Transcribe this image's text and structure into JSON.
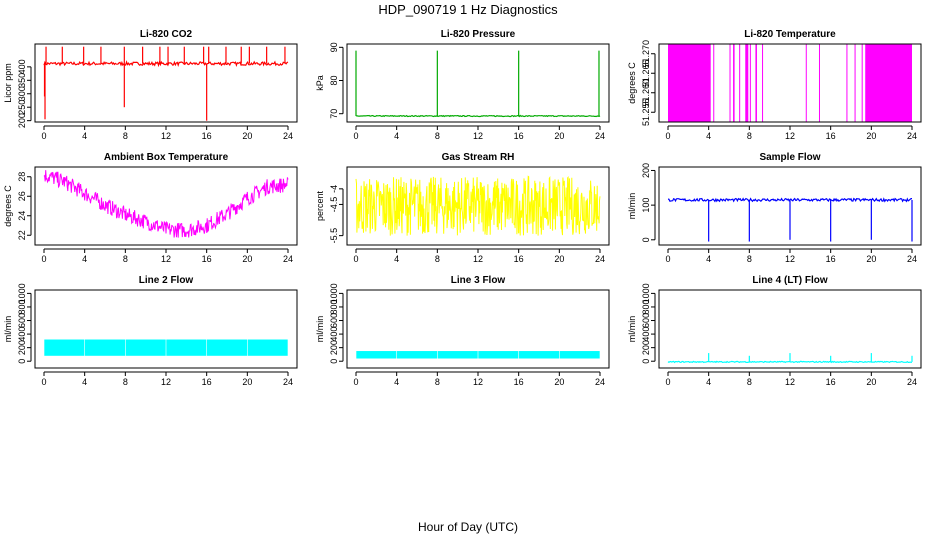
{
  "figure": {
    "title": "HDP_090719  1 Hz Diagnostics",
    "xlabel": "Hour of Day (UTC)"
  },
  "chart_data": [
    {
      "type": "line",
      "title": "Li-820 CO2",
      "ylabel": "Licor ppm",
      "color": "#ff0000",
      "xlim": [
        0,
        24
      ],
      "xticks": [
        0,
        4,
        8,
        12,
        16,
        20,
        24
      ],
      "ylim": [
        195,
        485
      ],
      "yticks": [
        200,
        250,
        300,
        350,
        400
      ],
      "series": [
        {
          "name": "CO2",
          "baseline": 412,
          "noise": 6,
          "spikes_up": [
            0.2,
            1.8,
            3.9,
            5.6,
            7.9,
            9.7,
            11.4,
            12.2,
            13.8,
            15.7,
            16.2,
            17.9,
            19.4,
            20.2,
            21.9,
            23.7
          ],
          "spike_up_value": 475,
          "spikes_down": [
            [
              0.1,
              205
            ],
            [
              7.9,
              250
            ],
            [
              16.0,
              200
            ],
            [
              0.05,
              290
            ]
          ]
        }
      ]
    },
    {
      "type": "line",
      "title": "Li-820 Pressure",
      "ylabel": "kPa",
      "color": "#00aa00",
      "xlim": [
        0,
        24
      ],
      "xticks": [
        0,
        4,
        8,
        12,
        16,
        20,
        24
      ],
      "ylim": [
        67.5,
        91
      ],
      "yticks": [
        70,
        80,
        90
      ],
      "series": [
        {
          "name": "Pressure",
          "baseline": 69.3,
          "noise": 0.15,
          "spikes_up": [
            0.0,
            8.0,
            16.0,
            23.9
          ],
          "spike_up_value": 89
        }
      ]
    },
    {
      "type": "area",
      "title": "Li-820 Temperature",
      "ylabel": "degrees C",
      "color": "#ff00ff",
      "xlim": [
        0,
        24
      ],
      "xticks": [
        0,
        4,
        8,
        12,
        16,
        20,
        24
      ],
      "ylim": [
        51.2525,
        51.2725
      ],
      "yticks": [
        51.255,
        51.26,
        51.265,
        51.27
      ],
      "series": [
        {
          "name": "Temperature",
          "low": 51.2525,
          "high": 51.2725,
          "filled_blocks": [
            [
              0,
              4.2
            ],
            [
              6.4,
              6.55
            ],
            [
              7.0,
              7.1
            ],
            [
              7.6,
              7.9
            ],
            [
              8.6,
              8.75
            ],
            [
              19.4,
              24
            ]
          ],
          "lines": [
            4.5,
            6.1,
            8.1,
            9.3,
            13.6,
            14.9,
            17.6,
            18.4,
            19.1
          ]
        }
      ]
    },
    {
      "type": "line",
      "title": "Ambient Box Temperature",
      "ylabel": "degrees C",
      "color": "#ff00ff",
      "xlim": [
        0,
        24
      ],
      "xticks": [
        0,
        4,
        8,
        12,
        16,
        20,
        24
      ],
      "ylim": [
        21,
        29
      ],
      "yticks": [
        22,
        24,
        26,
        28
      ],
      "series": [
        {
          "name": "Ambient",
          "noise": 0.8,
          "x": [
            0,
            2,
            4,
            6,
            8,
            10,
            12,
            14,
            16,
            18,
            20,
            22,
            24
          ],
          "y": [
            28.2,
            27.5,
            26.3,
            25.1,
            24.1,
            23.4,
            22.6,
            22.5,
            23.0,
            24.2,
            25.8,
            27.0,
            27.2
          ]
        }
      ]
    },
    {
      "type": "line",
      "title": "Gas Stream RH",
      "ylabel": "percent",
      "color": "#ffff00",
      "xlim": [
        0,
        24
      ],
      "xticks": [
        0,
        4,
        8,
        12,
        16,
        20,
        24
      ],
      "ylim": [
        -5.8,
        -3.3
      ],
      "yticks": [
        -5.5,
        -4.5,
        -4.0
      ],
      "series": [
        {
          "name": "RH",
          "low": -5.5,
          "high": -3.6
        }
      ]
    },
    {
      "type": "line",
      "title": "Sample Flow",
      "ylabel": "ml/min",
      "color": "#0000ff",
      "xlim": [
        0,
        24
      ],
      "xticks": [
        0,
        4,
        8,
        12,
        16,
        20,
        24
      ],
      "ylim": [
        -15,
        210
      ],
      "yticks": [
        0,
        100,
        200
      ],
      "series": [
        {
          "name": "Sample",
          "baseline": 115,
          "noise": 4,
          "spikes_down": [
            [
              4.0,
              -5
            ],
            [
              8.0,
              -5
            ],
            [
              12.0,
              0
            ],
            [
              16.0,
              -5
            ],
            [
              20.0,
              0
            ],
            [
              24.0,
              -5
            ]
          ]
        }
      ]
    },
    {
      "type": "area",
      "title": "Line 2 Flow",
      "ylabel": "ml/min",
      "color": "#00ffff",
      "xlim": [
        0,
        24
      ],
      "xticks": [
        0,
        4,
        8,
        12,
        16,
        20,
        24
      ],
      "ylim": [
        -100,
        1050
      ],
      "yticks": [
        0,
        200,
        400,
        600,
        800,
        1000
      ],
      "series": [
        {
          "name": "Line 2",
          "low": 80,
          "high": 320,
          "gaps": [
            4.0,
            8.0,
            12.0,
            16.0,
            20.0
          ]
        }
      ]
    },
    {
      "type": "area",
      "title": "Line 3 Flow",
      "ylabel": "ml/min",
      "color": "#00ffff",
      "xlim": [
        0,
        24
      ],
      "xticks": [
        0,
        4,
        8,
        12,
        16,
        20,
        24
      ],
      "ylim": [
        -100,
        1050
      ],
      "yticks": [
        0,
        200,
        400,
        600,
        800,
        1000
      ],
      "series": [
        {
          "name": "Line 3",
          "low": 40,
          "high": 150,
          "gaps": [
            4.0,
            8.0,
            12.0,
            16.0,
            20.0
          ]
        }
      ]
    },
    {
      "type": "line",
      "title": "Line 4 (LT) Flow",
      "ylabel": "ml/min",
      "color": "#00ffff",
      "xlim": [
        0,
        24
      ],
      "xticks": [
        0,
        4,
        8,
        12,
        16,
        20,
        24
      ],
      "ylim": [
        -100,
        1050
      ],
      "yticks": [
        0,
        200,
        400,
        600,
        800,
        1000
      ],
      "series": [
        {
          "name": "Line 4",
          "baseline": -10,
          "noise": 8,
          "spikes_up": [
            [
              4.0,
              120
            ],
            [
              8.0,
              80
            ],
            [
              12.0,
              120
            ],
            [
              16.0,
              80
            ],
            [
              20.0,
              120
            ],
            [
              24.0,
              80
            ]
          ]
        }
      ]
    }
  ]
}
